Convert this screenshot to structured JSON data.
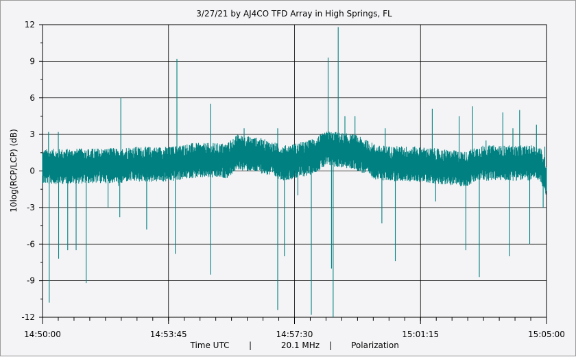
{
  "chart_data": {
    "type": "line",
    "title": "3/27/21  by  AJ4CO TFD Array  in  High Springs, FL",
    "ylabel": "10log(RCP/LCP) (dB)",
    "xlabel_parts": [
      "Time UTC",
      "|",
      "20.1 MHz",
      "|",
      "Polarization"
    ],
    "ylim": [
      -12,
      12
    ],
    "yticks": [
      12,
      9,
      6,
      3,
      0,
      -3,
      -6,
      -9,
      -12
    ],
    "xlim_minutes": [
      0,
      15
    ],
    "xticks": [
      {
        "minute": 0,
        "label": "14:50:00"
      },
      {
        "minute": 3.75,
        "label": "14:53:45"
      },
      {
        "minute": 7.5,
        "label": "14:57:30"
      },
      {
        "minute": 11.25,
        "label": "15:01:15"
      },
      {
        "minute": 15,
        "label": "15:05:00"
      }
    ],
    "grid": true,
    "series_color": "#008080",
    "baseline": [
      {
        "minute": 0.0,
        "y": 0.3
      },
      {
        "minute": 2.2,
        "y": 0.4
      },
      {
        "minute": 2.3,
        "y": 0.0
      },
      {
        "minute": 2.4,
        "y": 0.5
      },
      {
        "minute": 3.8,
        "y": 0.5
      },
      {
        "minute": 4.4,
        "y": 0.8
      },
      {
        "minute": 5.5,
        "y": 0.8
      },
      {
        "minute": 5.8,
        "y": 1.5
      },
      {
        "minute": 6.5,
        "y": 1.2
      },
      {
        "minute": 7.2,
        "y": 0.6
      },
      {
        "minute": 7.9,
        "y": 1.0
      },
      {
        "minute": 8.5,
        "y": 1.8
      },
      {
        "minute": 9.3,
        "y": 1.5
      },
      {
        "minute": 10.0,
        "y": 0.6
      },
      {
        "minute": 11.2,
        "y": 0.5
      },
      {
        "minute": 12.6,
        "y": 0.1
      },
      {
        "minute": 13.0,
        "y": 0.6
      },
      {
        "minute": 14.8,
        "y": 0.6
      },
      {
        "minute": 15.0,
        "y": -0.8
      }
    ],
    "spikes": [
      {
        "minute": 0.18,
        "y": 3.2
      },
      {
        "minute": 0.2,
        "y": -10.8
      },
      {
        "minute": 0.47,
        "y": 3.2
      },
      {
        "minute": 0.48,
        "y": -7.2
      },
      {
        "minute": 0.75,
        "y": -6.5
      },
      {
        "minute": 1.0,
        "y": -6.5
      },
      {
        "minute": 1.3,
        "y": -9.2
      },
      {
        "minute": 1.95,
        "y": -3.0
      },
      {
        "minute": 2.3,
        "y": -3.8
      },
      {
        "minute": 2.33,
        "y": 6.0
      },
      {
        "minute": 3.1,
        "y": -4.8
      },
      {
        "minute": 3.95,
        "y": -6.8
      },
      {
        "minute": 4.0,
        "y": 9.2
      },
      {
        "minute": 5.0,
        "y": -8.5
      },
      {
        "minute": 5.0,
        "y": 5.5
      },
      {
        "minute": 5.6,
        "y": 2.5
      },
      {
        "minute": 6.0,
        "y": 3.5
      },
      {
        "minute": 6.5,
        "y": 2.5
      },
      {
        "minute": 7.0,
        "y": 3.5
      },
      {
        "minute": 7.0,
        "y": -11.4
      },
      {
        "minute": 7.2,
        "y": -7.0
      },
      {
        "minute": 7.6,
        "y": -2.0
      },
      {
        "minute": 8.0,
        "y": -11.8
      },
      {
        "minute": 8.5,
        "y": 9.3
      },
      {
        "minute": 8.6,
        "y": -8.0
      },
      {
        "minute": 8.8,
        "y": 11.8
      },
      {
        "minute": 8.65,
        "y": -12.0
      },
      {
        "minute": 9.0,
        "y": 4.5
      },
      {
        "minute": 9.3,
        "y": 4.5
      },
      {
        "minute": 9.6,
        "y": 2.5
      },
      {
        "minute": 10.1,
        "y": -4.3
      },
      {
        "minute": 10.2,
        "y": 3.5
      },
      {
        "minute": 10.5,
        "y": -7.4
      },
      {
        "minute": 11.6,
        "y": 5.1
      },
      {
        "minute": 11.7,
        "y": -2.5
      },
      {
        "minute": 12.4,
        "y": 4.5
      },
      {
        "minute": 12.6,
        "y": -6.5
      },
      {
        "minute": 12.8,
        "y": 5.3
      },
      {
        "minute": 13.0,
        "y": -8.7
      },
      {
        "minute": 13.2,
        "y": 2.5
      },
      {
        "minute": 13.7,
        "y": 4.8
      },
      {
        "minute": 13.9,
        "y": -7.0
      },
      {
        "minute": 14.0,
        "y": 3.5
      },
      {
        "minute": 14.2,
        "y": 5.0
      },
      {
        "minute": 14.5,
        "y": -6.0
      },
      {
        "minute": 14.7,
        "y": 3.8
      },
      {
        "minute": 14.9,
        "y": -3.0
      },
      {
        "minute": 14.95,
        "y": 2.0
      }
    ]
  }
}
